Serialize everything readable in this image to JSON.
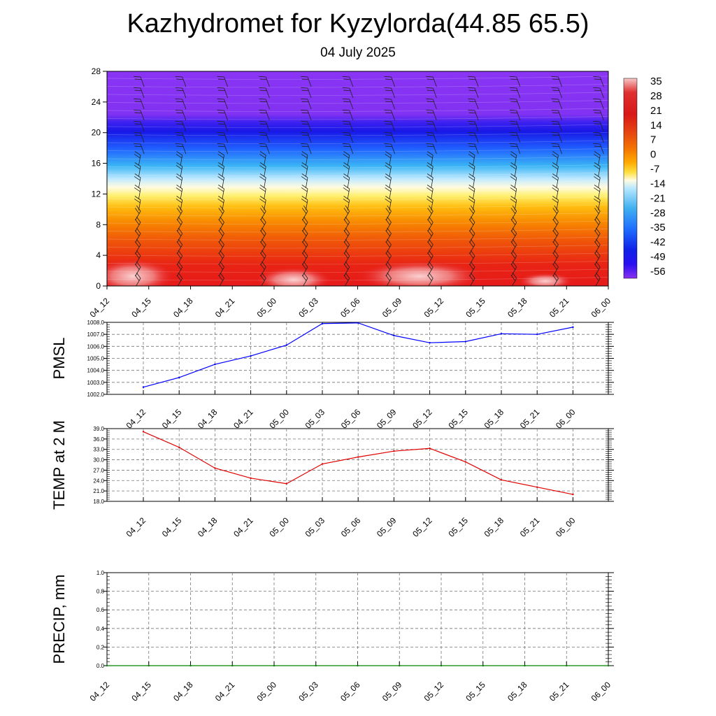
{
  "title": "Kazhydromet for Kyzylorda(44.85 65.5)",
  "subtitle": "04 July 2025",
  "chart_data": [
    {
      "type": "heatmap",
      "name": "temperature-wind-cross-section",
      "x_labels": [
        "04_12",
        "04_15",
        "04_18",
        "04_21",
        "05_00",
        "05_03",
        "05_06",
        "05_09",
        "05_12",
        "05_15",
        "05_18",
        "05_21",
        "06_00"
      ],
      "y_ticks": [
        0,
        4,
        8,
        12,
        16,
        20,
        24,
        28
      ],
      "ylim": [
        0,
        28
      ],
      "colorbar": {
        "labels": [
          "35",
          "28",
          "21",
          "14",
          "7",
          "0",
          "-7",
          "-14",
          "-21",
          "-28",
          "-35",
          "-42",
          "-49",
          "-56"
        ],
        "colors": [
          "#f8c8c8",
          "#e03030",
          "#d81818",
          "#e84a10",
          "#f57a00",
          "#ffaa00",
          "#ffe040",
          "#fffbe0",
          "#b8e8ff",
          "#40b0f0",
          "#2070ff",
          "#1020e8",
          "#2a10f0",
          "#8a30f0"
        ]
      },
      "overlay": "wind-barbs"
    },
    {
      "type": "line",
      "ylabel": "PMSL",
      "x_labels": [
        "04_12",
        "04_15",
        "04_18",
        "04_21",
        "05_00",
        "05_03",
        "05_06",
        "05_09",
        "05_12",
        "05_15",
        "05_18",
        "05_21",
        "06_00"
      ],
      "y_ticks": [
        "1002.0",
        "1003.0",
        "1004.0",
        "1005.0",
        "1006.0",
        "1007.0",
        "1008.0"
      ],
      "ylim": [
        1002.0,
        1008.0
      ],
      "series": [
        {
          "color": "#0000ff",
          "values": [
            1002.6,
            1003.4,
            1004.5,
            1005.2,
            1006.1,
            1007.9,
            1007.95,
            1006.9,
            1006.3,
            1006.4,
            1007.05,
            1007.0,
            1007.6
          ]
        }
      ],
      "grid": true
    },
    {
      "type": "line",
      "ylabel": "TEMP at 2 M",
      "x_labels": [
        "04_12",
        "04_15",
        "04_18",
        "04_21",
        "05_00",
        "05_03",
        "05_06",
        "05_09",
        "05_12",
        "05_15",
        "05_18",
        "05_21",
        "06_00"
      ],
      "y_ticks": [
        "18.0",
        "21.0",
        "24.0",
        "27.0",
        "30.0",
        "33.0",
        "36.0",
        "39.0"
      ],
      "ylim": [
        18.0,
        39.0
      ],
      "series": [
        {
          "color": "#e00000",
          "values": [
            38.1,
            33.6,
            27.6,
            24.7,
            23.1,
            28.8,
            30.8,
            32.5,
            33.3,
            29.4,
            24.2,
            22.1,
            20.0
          ]
        }
      ],
      "grid": true
    },
    {
      "type": "line",
      "ylabel": "PRECIP, mm",
      "x_labels": [
        "04_12",
        "04_15",
        "04_18",
        "04_21",
        "05_00",
        "05_03",
        "05_06",
        "05_09",
        "05_12",
        "05_15",
        "05_18",
        "05_21",
        "06_00"
      ],
      "y_ticks": [
        "0.0",
        "0.2",
        "0.4",
        "0.6",
        "0.8",
        "1.0"
      ],
      "ylim": [
        0.0,
        1.0
      ],
      "series": [
        {
          "color": "#008000",
          "values": [
            0,
            0,
            0,
            0,
            0,
            0,
            0,
            0,
            0,
            0,
            0,
            0,
            0
          ]
        }
      ],
      "grid": true
    }
  ]
}
